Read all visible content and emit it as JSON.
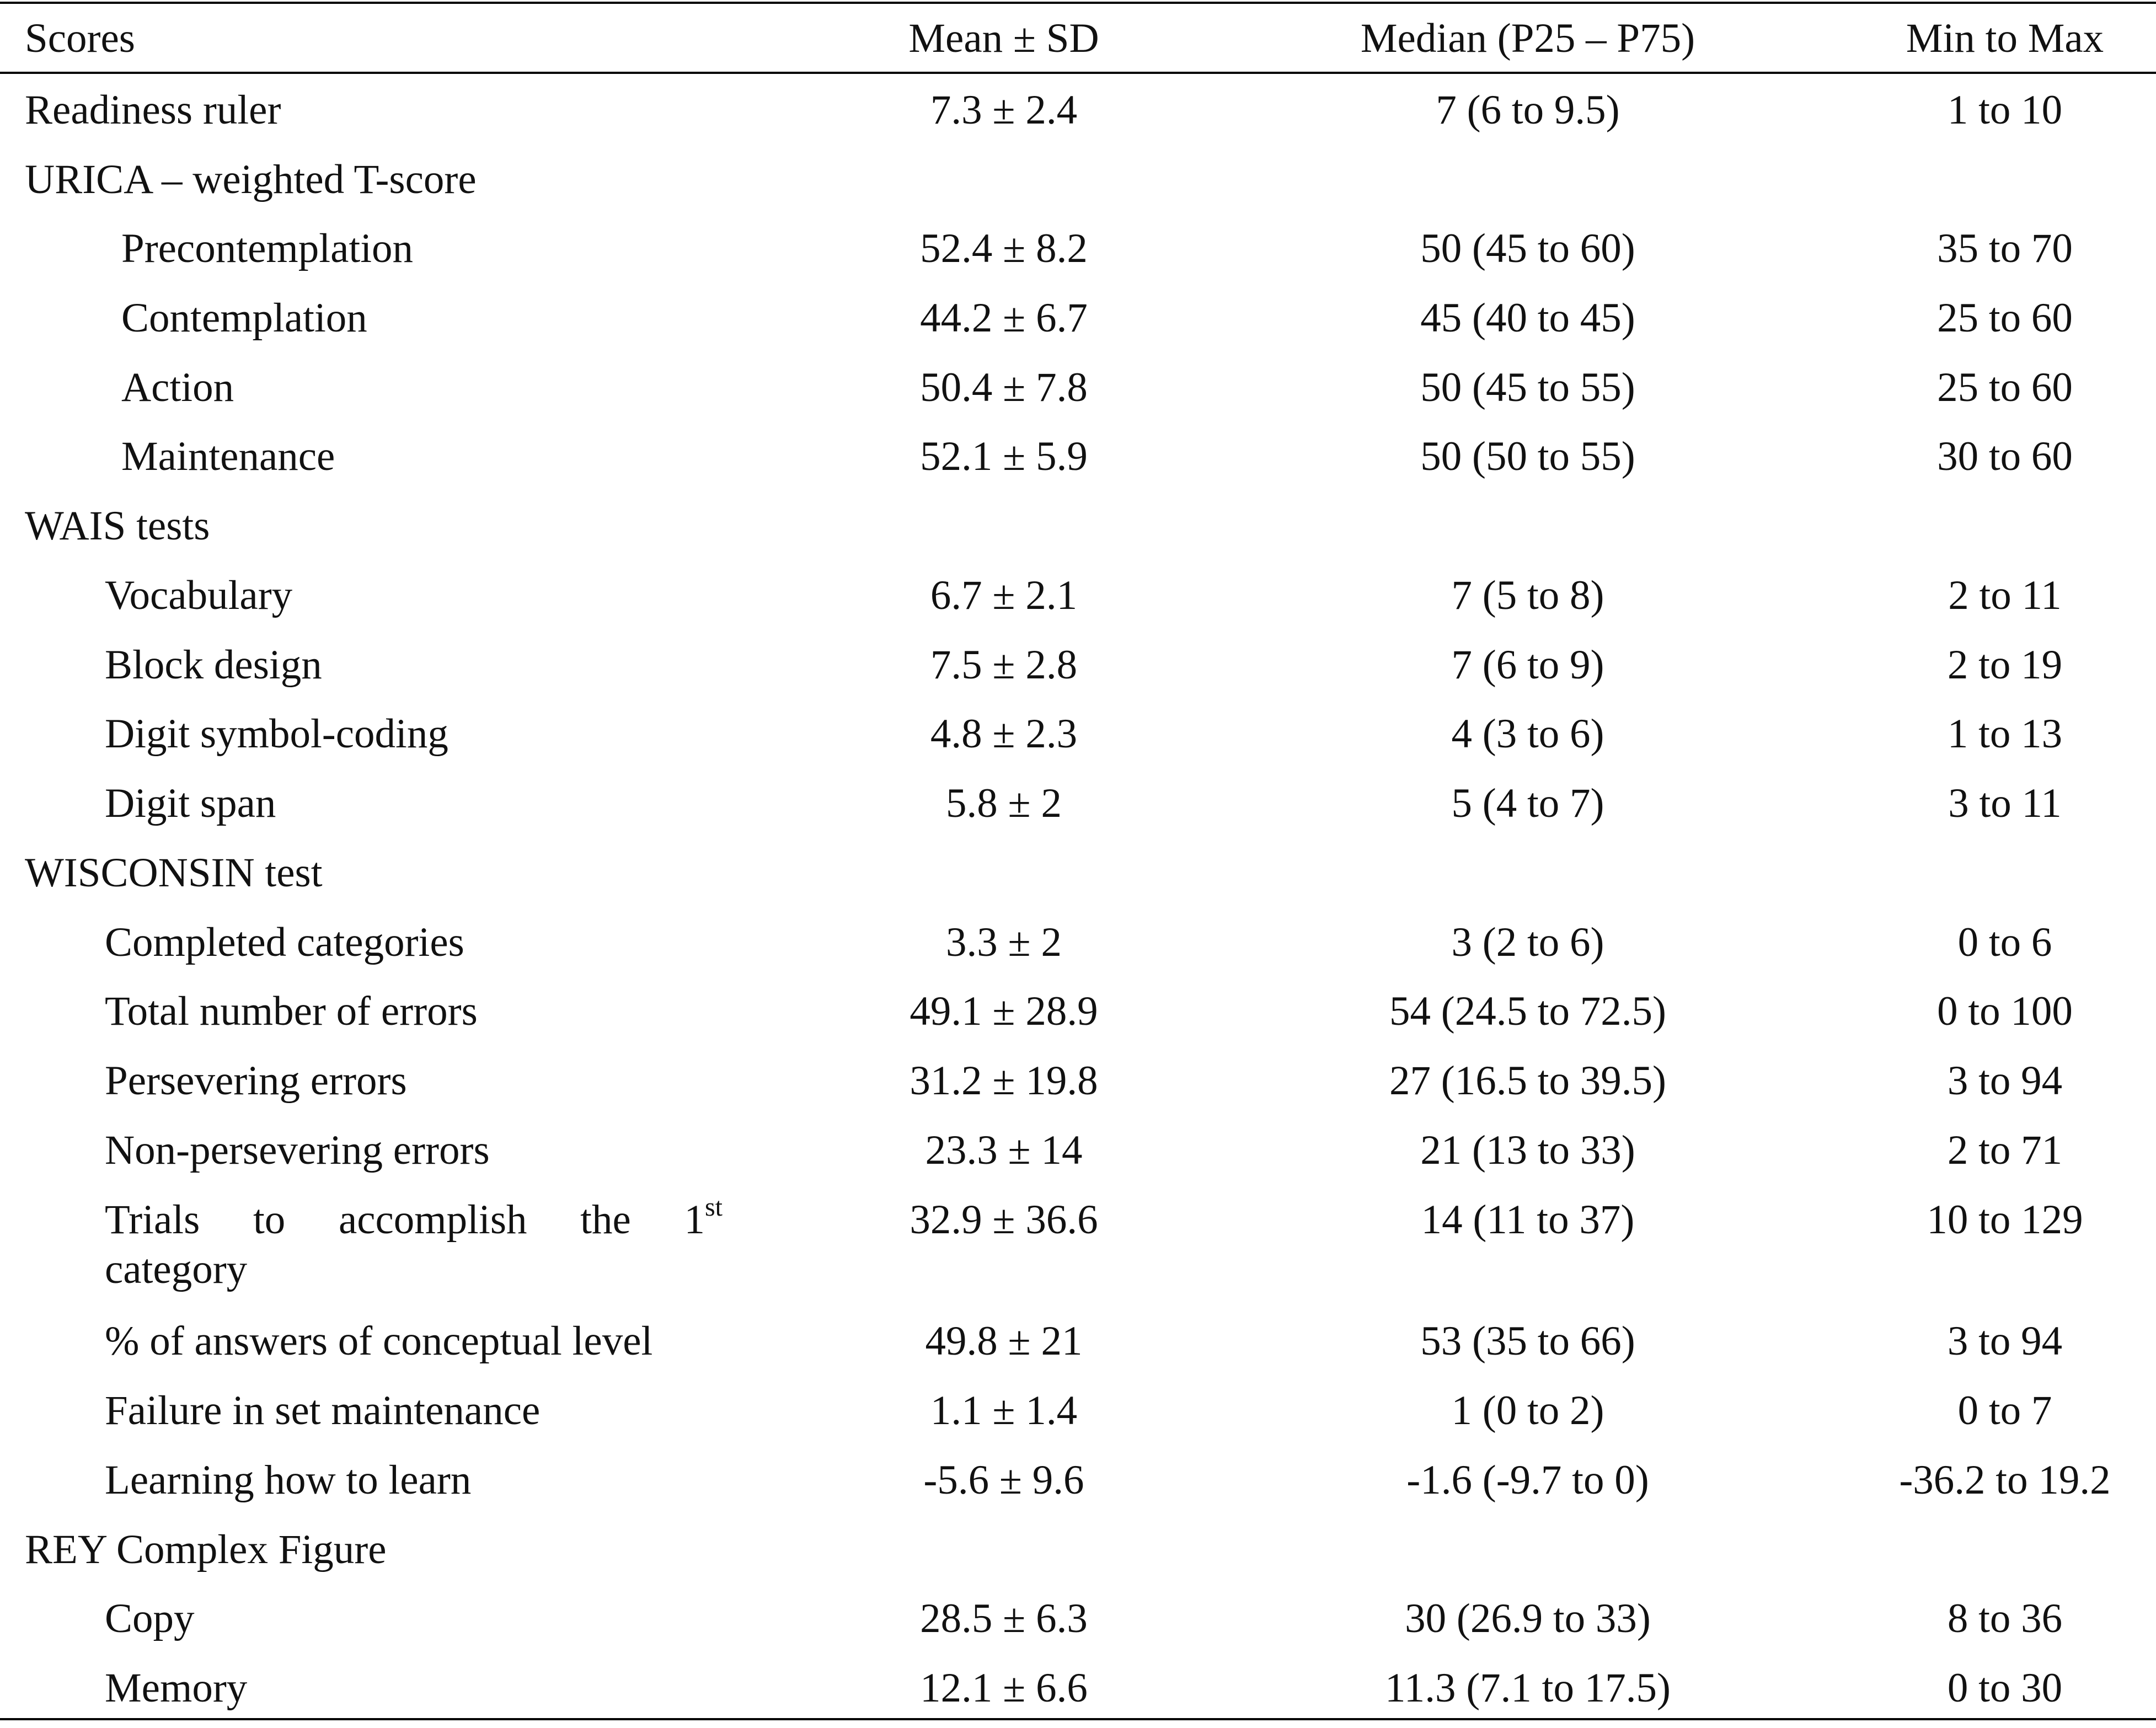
{
  "table": {
    "headers": [
      "Scores",
      "Mean ± SD",
      "Median (P25 – P75)",
      "Min to Max"
    ],
    "rows": [
      {
        "label": "Readiness ruler",
        "mean": "7.3 ± 2.4",
        "median": "7 (6 to 9.5)",
        "range": "1 to 10"
      },
      {
        "label": "URICA – weighted T-score",
        "mean": "",
        "median": "",
        "range": ""
      },
      {
        "label": "Precontemplation",
        "mean": "52.4 ± 8.2",
        "median": "50 (45 to 60)",
        "range": "35 to 70"
      },
      {
        "label": "Contemplation",
        "mean": "44.2 ± 6.7",
        "median": "45 (40 to 45)",
        "range": "25 to 60"
      },
      {
        "label": "Action",
        "mean": "50.4 ± 7.8",
        "median": "50 (45 to 55)",
        "range": "25 to 60"
      },
      {
        "label": "Maintenance",
        "mean": "52.1 ± 5.9",
        "median": "50 (50 to 55)",
        "range": "30 to 60"
      },
      {
        "label": "WAIS tests",
        "mean": "",
        "median": "",
        "range": ""
      },
      {
        "label": "Vocabulary",
        "mean": "6.7 ± 2.1",
        "median": "7 (5 to 8)",
        "range": "2 to 11"
      },
      {
        "label": "Block design",
        "mean": "7.5 ± 2.8",
        "median": "7 (6 to 9)",
        "range": "2 to 19"
      },
      {
        "label": "Digit symbol-coding",
        "mean": "4.8 ± 2.3",
        "median": "4 (3 to 6)",
        "range": "1 to 13"
      },
      {
        "label": "Digit span",
        "mean": "5.8 ± 2",
        "median": "5 (4 to 7)",
        "range": "3 to 11"
      },
      {
        "label": "WISCONSIN test",
        "mean": "",
        "median": "",
        "range": ""
      },
      {
        "label": "Completed categories",
        "mean": "3.3 ± 2",
        "median": "3 (2 to 6)",
        "range": "0 to 6"
      },
      {
        "label": "Total number of errors",
        "mean": "49.1 ± 28.9",
        "median": "54 (24.5 to 72.5)",
        "range": "0 to 100"
      },
      {
        "label": "Persevering errors",
        "mean": "31.2 ± 19.8",
        "median": "27 (16.5 to 39.5)",
        "range": "3 to 94"
      },
      {
        "label": "Non-persevering errors",
        "mean": "23.3 ± 14",
        "median": "21 (13 to 33)",
        "range": "2 to 71"
      },
      {
        "label_words": [
          "Trials",
          "to",
          "accomplish",
          "the",
          "1"
        ],
        "label_sup": "st",
        "label_line2": "category",
        "mean": "32.9 ± 36.6",
        "median": "14 (11 to 37)",
        "range": "10 to 129"
      },
      {
        "label": "% of answers of conceptual level",
        "mean": "49.8 ± 21",
        "median": "53 (35 to 66)",
        "range": "3 to 94"
      },
      {
        "label": "Failure in set maintenance",
        "mean": "1.1 ± 1.4",
        "median": "1 (0 to 2)",
        "range": "0 to 7"
      },
      {
        "label": "Learning how to learn",
        "mean": "-5.6 ± 9.6",
        "median": "-1.6 (-9.7 to 0)",
        "range": "-36.2 to 19.2"
      },
      {
        "label": "REY Complex Figure",
        "mean": "",
        "median": "",
        "range": ""
      },
      {
        "label": "Copy",
        "mean": "28.5 ± 6.3",
        "median": "30 (26.9 to 33)",
        "range": "8 to 36"
      },
      {
        "label": "Memory",
        "mean": "12.1 ± 6.6",
        "median": "11.3 (7.1 to 17.5)",
        "range": "0 to 30"
      }
    ]
  }
}
